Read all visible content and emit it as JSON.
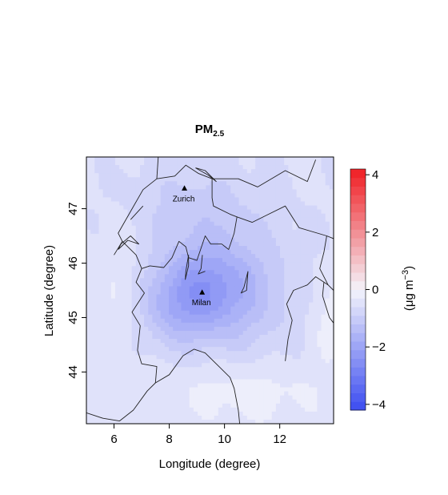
{
  "chart_data": {
    "type": "heatmap",
    "title": "PM",
    "title_subscript": "2.5",
    "xlabel": "Longitude (degree)",
    "ylabel": "Latitude (degree)",
    "xlim": [
      5.0,
      13.95
    ],
    "ylim": [
      43.05,
      47.95
    ],
    "x_ticks": [
      6,
      8,
      10,
      12
    ],
    "x_tick_labels": [
      "6",
      "8",
      "10",
      "12"
    ],
    "y_ticks": [
      44,
      45,
      46,
      47
    ],
    "y_tick_labels": [
      "44",
      "45",
      "46",
      "47"
    ],
    "colorbar": {
      "range": [
        -4.2,
        4.2
      ],
      "ticks": [
        -4,
        -2,
        0,
        2,
        4
      ],
      "tick_labels": [
        "−4",
        "−2",
        "0",
        "2",
        "4"
      ],
      "label": "(μg m",
      "label_exponent": "−3",
      "label_close": ")",
      "low_color": "#3b4cf0",
      "mid_color": "#f4f4fb",
      "high_color": "#f01e23"
    },
    "cities": [
      {
        "name": "Zurich",
        "lon": 8.55,
        "lat": 47.37
      },
      {
        "name": "Milan",
        "lon": 9.19,
        "lat": 45.46
      }
    ],
    "field_model": {
      "description_units": "PM2.5 change (μg m-3)",
      "background_value": -0.55,
      "components": [
        {
          "lon": 9.2,
          "lat": 45.45,
          "amplitude": -1.3,
          "sigma_lon": 1.1,
          "sigma_lat": 0.55
        },
        {
          "lon": 8.0,
          "lat": 45.1,
          "amplitude": -0.55,
          "sigma_lon": 0.8,
          "sigma_lat": 0.5
        },
        {
          "lon": 10.8,
          "lat": 45.3,
          "amplitude": -0.55,
          "sigma_lon": 1.4,
          "sigma_lat": 0.75
        },
        {
          "lon": 9.5,
          "lat": 46.2,
          "amplitude": -0.4,
          "sigma_lon": 1.6,
          "sigma_lat": 0.6
        },
        {
          "lon": 8.8,
          "lat": 47.2,
          "amplitude": -0.35,
          "sigma_lon": 1.8,
          "sigma_lat": 0.5
        },
        {
          "lon": 6.2,
          "lat": 45.6,
          "amplitude": 0.25,
          "sigma_lon": 0.6,
          "sigma_lat": 1.0
        },
        {
          "lon": 10.8,
          "lat": 43.6,
          "amplitude": 0.4,
          "sigma_lon": 2.2,
          "sigma_lat": 0.45
        },
        {
          "lon": 13.7,
          "lat": 45.0,
          "amplitude": 0.35,
          "sigma_lon": 0.5,
          "sigma_lat": 0.6
        }
      ]
    },
    "boundaries": [
      {
        "name": "swiss-border",
        "points": [
          [
            6.0,
            46.15
          ],
          [
            6.3,
            46.4
          ],
          [
            6.15,
            46.55
          ],
          [
            6.6,
            46.95
          ],
          [
            7.05,
            47.35
          ],
          [
            7.55,
            47.55
          ],
          [
            8.2,
            47.6
          ],
          [
            8.6,
            47.8
          ],
          [
            9.05,
            47.65
          ],
          [
            9.55,
            47.55
          ],
          [
            9.55,
            47.2
          ],
          [
            9.6,
            47.05
          ],
          [
            10.2,
            46.9
          ],
          [
            10.45,
            46.85
          ],
          [
            10.35,
            46.55
          ],
          [
            10.15,
            46.25
          ],
          [
            9.9,
            46.35
          ],
          [
            9.5,
            46.35
          ],
          [
            9.3,
            46.5
          ],
          [
            9.0,
            46.05
          ],
          [
            8.7,
            46.1
          ],
          [
            8.6,
            46.3
          ],
          [
            8.35,
            46.4
          ],
          [
            8.1,
            46.1
          ],
          [
            7.8,
            45.92
          ],
          [
            7.3,
            45.95
          ],
          [
            7.0,
            45.9
          ],
          [
            6.8,
            46.15
          ],
          [
            6.3,
            46.4
          ]
        ]
      },
      {
        "name": "german-border",
        "points": [
          [
            7.55,
            47.55
          ],
          [
            7.6,
            47.95
          ]
        ]
      },
      {
        "name": "austria-border",
        "points": [
          [
            9.55,
            47.55
          ],
          [
            9.75,
            47.55
          ],
          [
            10.5,
            47.55
          ],
          [
            11.2,
            47.4
          ],
          [
            12.2,
            47.7
          ],
          [
            13.0,
            47.5
          ],
          [
            13.3,
            47.9
          ]
        ]
      },
      {
        "name": "italy-austria-border",
        "points": [
          [
            10.45,
            46.85
          ],
          [
            11.0,
            46.75
          ],
          [
            11.6,
            46.9
          ],
          [
            12.2,
            47.05
          ],
          [
            12.7,
            46.65
          ],
          [
            13.7,
            46.5
          ],
          [
            13.95,
            46.45
          ]
        ]
      },
      {
        "name": "italy-slovenia-border",
        "points": [
          [
            13.7,
            46.5
          ],
          [
            13.6,
            46.2
          ],
          [
            13.45,
            45.9
          ],
          [
            13.75,
            45.6
          ]
        ]
      },
      {
        "name": "france-italy-border",
        "points": [
          [
            7.0,
            45.9
          ],
          [
            6.8,
            45.65
          ],
          [
            7.1,
            45.45
          ],
          [
            6.65,
            45.1
          ],
          [
            6.95,
            44.85
          ],
          [
            6.85,
            44.4
          ],
          [
            7.0,
            44.15
          ],
          [
            7.55,
            44.1
          ],
          [
            7.5,
            43.8
          ]
        ]
      },
      {
        "name": "northern-coast",
        "points": [
          [
            5.0,
            43.25
          ],
          [
            5.6,
            43.15
          ],
          [
            6.2,
            43.1
          ],
          [
            6.7,
            43.3
          ],
          [
            7.2,
            43.65
          ],
          [
            7.5,
            43.8
          ],
          [
            8.0,
            43.95
          ],
          [
            8.5,
            44.3
          ],
          [
            8.9,
            44.42
          ],
          [
            9.3,
            44.35
          ],
          [
            9.8,
            44.1
          ],
          [
            10.2,
            43.9
          ],
          [
            10.35,
            43.7
          ],
          [
            10.5,
            43.3
          ],
          [
            10.55,
            43.05
          ]
        ]
      },
      {
        "name": "adriatic-coast",
        "points": [
          [
            12.2,
            44.2
          ],
          [
            12.3,
            44.6
          ],
          [
            12.45,
            44.95
          ],
          [
            12.25,
            45.25
          ],
          [
            12.5,
            45.5
          ],
          [
            13.0,
            45.6
          ],
          [
            13.3,
            45.75
          ],
          [
            13.6,
            45.65
          ],
          [
            13.75,
            45.6
          ],
          [
            13.95,
            45.5
          ]
        ]
      },
      {
        "name": "istria-coast",
        "points": [
          [
            13.6,
            45.65
          ],
          [
            13.55,
            45.4
          ],
          [
            13.8,
            45.0
          ],
          [
            13.95,
            44.9
          ]
        ]
      },
      {
        "name": "lake-geneva",
        "points": [
          [
            6.15,
            46.25
          ],
          [
            6.5,
            46.42
          ],
          [
            6.9,
            46.35
          ],
          [
            6.6,
            46.5
          ],
          [
            6.25,
            46.35
          ],
          [
            6.15,
            46.25
          ]
        ]
      },
      {
        "name": "lake-neuchatel",
        "points": [
          [
            6.6,
            46.8
          ],
          [
            7.05,
            47.05
          ]
        ]
      },
      {
        "name": "lake-maggiore",
        "points": [
          [
            8.7,
            46.15
          ],
          [
            8.6,
            45.85
          ],
          [
            8.58,
            45.7
          ],
          [
            8.7,
            45.95
          ],
          [
            8.7,
            46.15
          ]
        ]
      },
      {
        "name": "lake-como",
        "points": [
          [
            9.2,
            46.15
          ],
          [
            9.15,
            45.9
          ],
          [
            9.05,
            45.8
          ],
          [
            9.3,
            45.85
          ]
        ]
      },
      {
        "name": "lake-garda",
        "points": [
          [
            10.85,
            45.85
          ],
          [
            10.7,
            45.55
          ],
          [
            10.6,
            45.45
          ],
          [
            10.8,
            45.5
          ],
          [
            10.85,
            45.85
          ]
        ]
      },
      {
        "name": "lake-constance",
        "points": [
          [
            8.95,
            47.75
          ],
          [
            9.4,
            47.62
          ],
          [
            9.7,
            47.5
          ],
          [
            9.3,
            47.7
          ],
          [
            8.95,
            47.75
          ]
        ]
      }
    ]
  }
}
